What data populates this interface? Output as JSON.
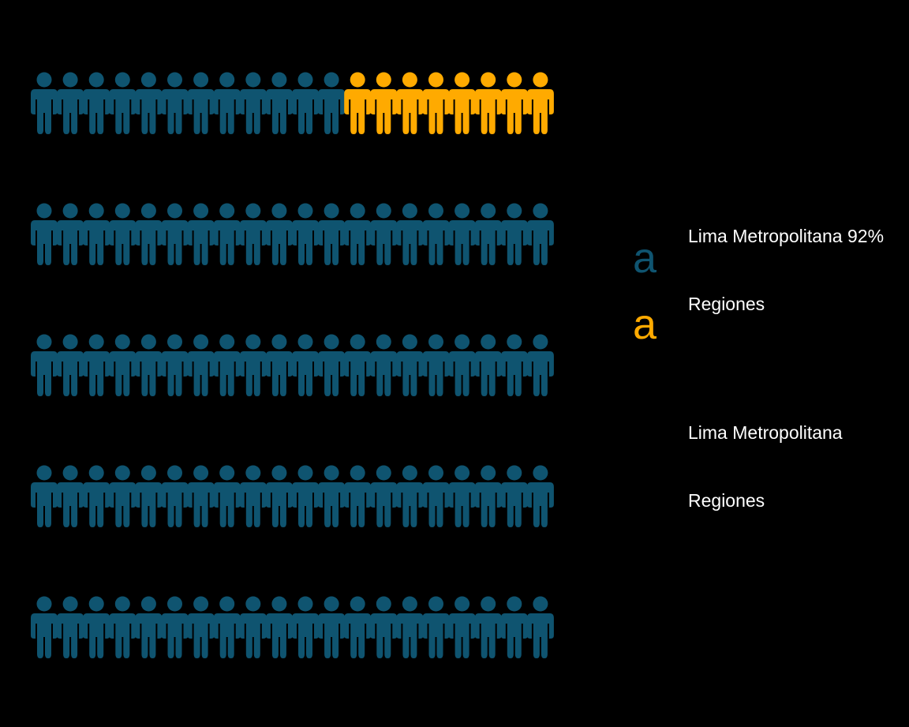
{
  "chart_data": {
    "type": "pictogram",
    "icon": "person-icon",
    "icons_per_row": 20,
    "rows": [
      {
        "primary": 12,
        "secondary": 8
      },
      {
        "primary": 20,
        "secondary": 0
      },
      {
        "primary": 20,
        "secondary": 0
      },
      {
        "primary": 20,
        "secondary": 0
      },
      {
        "primary": 20,
        "secondary": 0
      }
    ],
    "colors": {
      "primary": "#0f5470",
      "secondary": "#ffaa00",
      "background": "#000000",
      "text": "#ffffff"
    }
  },
  "legend": {
    "swatch_glyph": "a",
    "item_1": "Lima Metropolitana 92%",
    "item_2": "Regiones",
    "item_3": "Lima Metropolitana",
    "item_4": "Regiones"
  }
}
